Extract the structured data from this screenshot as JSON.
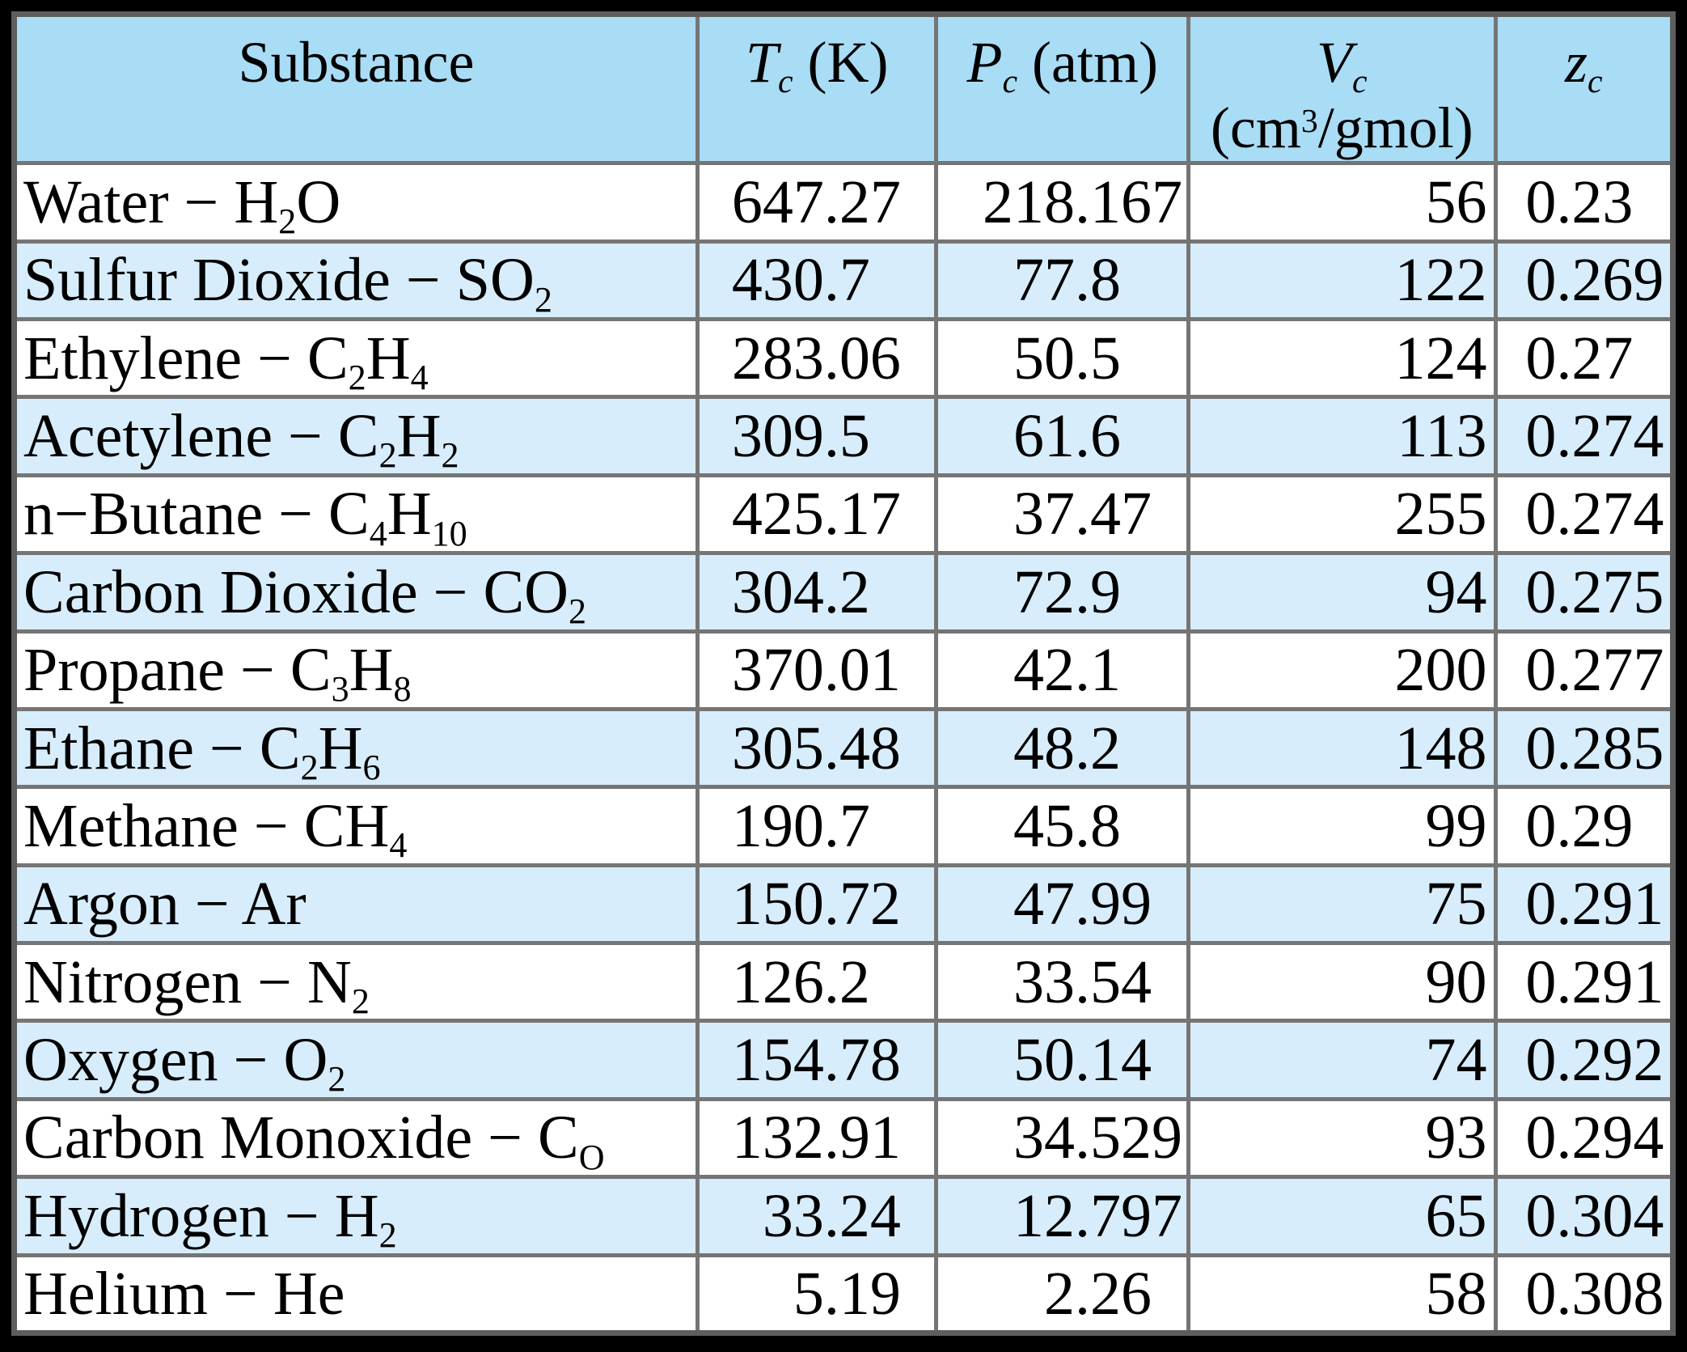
{
  "page": {
    "background": "#000000"
  },
  "table": {
    "colors": {
      "page_bg": "#000000",
      "header_bg": "#a9dcf5",
      "alt_bg": "#d7edfb",
      "row_bg": "#ffffff",
      "grid": "#757575",
      "outer_border": "#5e5e5e",
      "text": "#000000"
    },
    "header": {
      "substance_label": "Substance",
      "tc": {
        "symbol": "T",
        "sub": "c",
        "unit": "(K)"
      },
      "pc": {
        "symbol": "P",
        "sub": "c",
        "unit": "(atm)"
      },
      "vc": {
        "symbol": "V",
        "sub": "c",
        "unit": "(cm^3/gmol)"
      },
      "zc": {
        "symbol": "z",
        "sub": "c",
        "unit": ""
      }
    },
    "rows": [
      {
        "substance": "Water − H_2O",
        "tc": "647.27",
        "pc": "218.167",
        "vc": "56",
        "zc": "0.23"
      },
      {
        "substance": "Sulfur Dioxide − SO_2",
        "tc": "430.7",
        "pc": "77.8",
        "vc": "122",
        "zc": "0.269"
      },
      {
        "substance": "Ethylene − C_2H_4",
        "tc": "283.06",
        "pc": "50.5",
        "vc": "124",
        "zc": "0.27"
      },
      {
        "substance": "Acetylene − C_2H_2",
        "tc": "309.5",
        "pc": "61.6",
        "vc": "113",
        "zc": "0.274"
      },
      {
        "substance": "n−Butane − C_4H_{10}",
        "tc": "425.17",
        "pc": "37.47",
        "vc": "255",
        "zc": "0.274"
      },
      {
        "substance": "Carbon Dioxide − CO_2",
        "tc": "304.2",
        "pc": "72.9",
        "vc": "94",
        "zc": "0.275"
      },
      {
        "substance": "Propane − C_3H_8",
        "tc": "370.01",
        "pc": "42.1",
        "vc": "200",
        "zc": "0.277"
      },
      {
        "substance": "Ethane − C_2H_6",
        "tc": "305.48",
        "pc": "48.2",
        "vc": "148",
        "zc": "0.285"
      },
      {
        "substance": "Methane − CH_4",
        "tc": "190.7",
        "pc": "45.8",
        "vc": "99",
        "zc": "0.29"
      },
      {
        "substance": "Argon − Ar",
        "tc": "150.72",
        "pc": "47.99",
        "vc": "75",
        "zc": "0.291"
      },
      {
        "substance": "Nitrogen − N_2",
        "tc": "126.2",
        "pc": "33.54",
        "vc": "90",
        "zc": "0.291"
      },
      {
        "substance": "Oxygen − O_2",
        "tc": "154.78",
        "pc": "50.14",
        "vc": "74",
        "zc": "0.292"
      },
      {
        "substance": "Carbon Monoxide − C_O",
        "tc": "132.91",
        "pc": "34.529",
        "vc": "93",
        "zc": "0.294"
      },
      {
        "substance": "Hydrogen − H_2",
        "tc": "33.24",
        "pc": "12.797",
        "vc": "65",
        "zc": "0.304"
      },
      {
        "substance": "Helium − He",
        "tc": "5.19",
        "pc": "2.26",
        "vc": "58",
        "zc": "0.308"
      }
    ]
  }
}
